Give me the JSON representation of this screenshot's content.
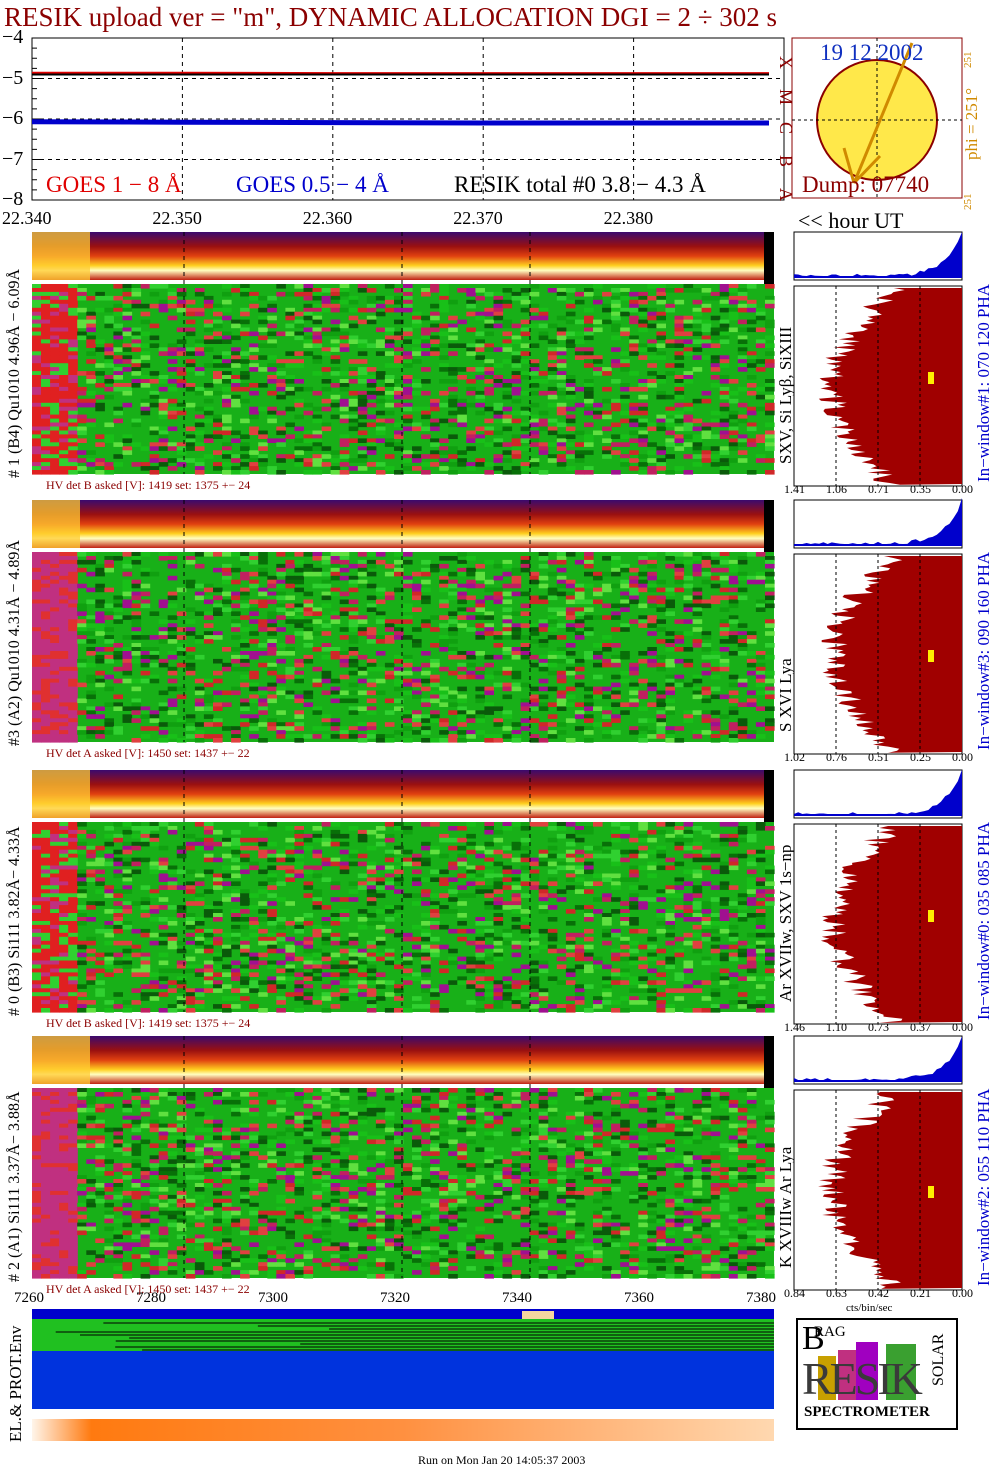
{
  "title": "RESIK upload ver = \"m\", DYNAMIC ALLOCATION  DGI =   2 ÷ 302 s",
  "colors": {
    "red": "#e00000",
    "blue": "#0000cc",
    "dark_red": "#8b0000",
    "orange": "#d08a00",
    "sun": "#ffe84a",
    "hist": "#a00000"
  },
  "goes": {
    "legend_long": "GOES 1 − 8 Å",
    "legend_short": "GOES 0.5 − 4 Å",
    "legend_total": "RESIK total #0  3.8 − 4.3 Å",
    "hour_label": "<< hour UT",
    "y_ticks": [
      "−4",
      "−5",
      "−6",
      "−7",
      "−8"
    ],
    "x_ticks": [
      "22.340",
      "22.350",
      "22.360",
      "22.370",
      "22.380"
    ]
  },
  "chart_data": [
    {
      "type": "line",
      "xlabel": "hour UT",
      "ylim": [
        -8,
        -4
      ],
      "xlim": [
        22.34,
        22.39
      ],
      "x": [
        22.34,
        22.35,
        22.36,
        22.37,
        22.38,
        22.389
      ],
      "series": [
        {
          "name": "GOES 1 − 8 Å",
          "values": [
            -4.87,
            -4.87,
            -4.88,
            -4.88,
            -4.88,
            -4.88
          ]
        },
        {
          "name": "GOES 0.5 − 4 Å",
          "values": [
            -6.07,
            -6.08,
            -6.09,
            -6.1,
            -6.1,
            -6.1
          ]
        },
        {
          "name": "RESIK total #0  3.8 − 4.3 Å",
          "values": [
            -4.9,
            -4.9,
            -4.9,
            -4.9,
            -4.9,
            -4.9
          ]
        }
      ]
    },
    {
      "type": "bar",
      "title": "In−window#1:  070 120 PHA",
      "x_ticks": [
        "1.41",
        "1.06",
        "0.71",
        "0.35",
        "0.00"
      ]
    },
    {
      "type": "bar",
      "title": "In−window#3:  090 160 PHA",
      "x_ticks": [
        "1.02",
        "0.76",
        "0.51",
        "0.25",
        "0.00"
      ]
    },
    {
      "type": "bar",
      "title": "In−window#0:  035 085 PHA",
      "x_ticks": [
        "1.46",
        "1.10",
        "0.73",
        "0.37",
        "0.00"
      ]
    },
    {
      "type": "bar",
      "title": "In−window#2:  055 110 PHA",
      "x_ticks": [
        "0.84",
        "0.63",
        "0.42",
        "0.21",
        "0.00"
      ],
      "xlabel": "cts/bin/sec"
    }
  ],
  "sun": {
    "date": "19 12 2002",
    "dump": "Dump: 07740",
    "phi": "phi = 251°",
    "phi_top": "251",
    "phi_bottom": "251",
    "axis_letters": [
      "A",
      "B",
      "C",
      "M",
      "X"
    ]
  },
  "panels": [
    {
      "channel": "# 1 (B4) Qu1010 4.96Å − 6.09Å",
      "lines": "SXV, Si Lyβ, SiXIII",
      "hv": "HV det B asked [V]:  1419 set:  1375  +−   24"
    },
    {
      "channel": "#3 (A2) Qu1010  4.31Å − 4.89Å",
      "lines": "S XVI Lya",
      "hv": "HV det A asked [V]:  1450 set:  1437  +−   22"
    },
    {
      "channel": "# 0 (B3) Si111  3.82Å− 4.33Å",
      "lines": "Ar XVIIw,  SXV 1s−np",
      "hv": "HV det B asked [V]:  1419 set:  1375  +−   24"
    },
    {
      "channel": "# 2 (A1) Si111  3.37Å− 3.88Å",
      "lines": "K XVIIIw  Ar Lya",
      "hv": "HV det A asked [V]:  1450 set:  1437  +−   22"
    }
  ],
  "bottom_axis": {
    "ticks": [
      "7260",
      "7280",
      "7300",
      "7320",
      "7340",
      "7360",
      "7380"
    ]
  },
  "env_label": "EL.& PROT.Env",
  "logo": {
    "b": "B",
    "rag": "RAG",
    "resik": "RESIK",
    "solar": "SOLAR",
    "spectrometer": "SPECTROMETER"
  },
  "footer": "Run on Mon Jan 20 14:05:37 2003"
}
